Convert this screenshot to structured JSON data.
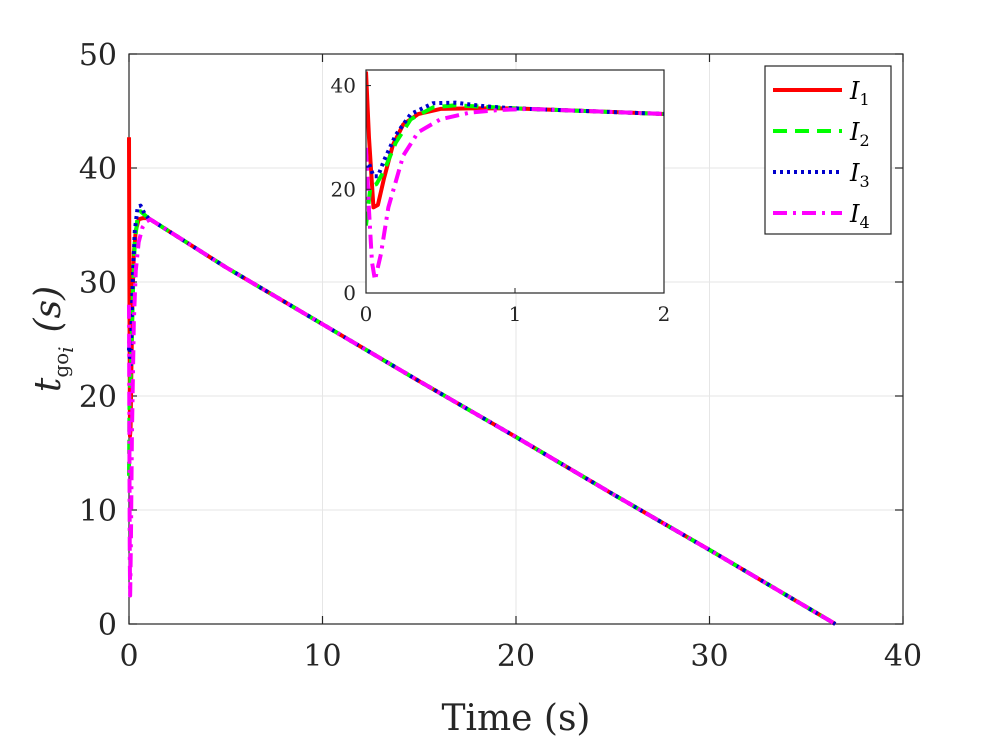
{
  "chart_data": [
    {
      "type": "line",
      "xlabel": "Time (s)",
      "ylabel": {
        "main": "t",
        "sub": "go",
        "subsub": "i",
        "unit": "(s)"
      },
      "xlim": [
        0,
        40
      ],
      "ylim": [
        0,
        50
      ],
      "xticks": [
        0,
        10,
        20,
        30,
        40
      ],
      "yticks": [
        0,
        10,
        20,
        30,
        40,
        50
      ],
      "grid": true,
      "legend": {
        "placement": "top-right",
        "entries": [
          {
            "base": "I",
            "sub": "1"
          },
          {
            "base": "I",
            "sub": "2"
          },
          {
            "base": "I",
            "sub": "3"
          },
          {
            "base": "I",
            "sub": "4"
          }
        ]
      },
      "series": [
        {
          "legend_index": 0,
          "color": "#ff0000",
          "style": "solid",
          "x": [
            0,
            0.02,
            0.05,
            0.08,
            0.12,
            0.18,
            0.25,
            0.35,
            0.5,
            0.7,
            1.0,
            5,
            10,
            15,
            20,
            25,
            30,
            35,
            36.5
          ],
          "y": [
            42.7,
            30.0,
            16.5,
            17.0,
            22.0,
            28.5,
            32.5,
            34.5,
            35.5,
            35.6,
            35.6,
            31.3,
            26.3,
            21.3,
            16.4,
            11.4,
            6.5,
            1.5,
            0
          ]
        },
        {
          "legend_index": 1,
          "color": "#00ff00",
          "style": "dashed",
          "x": [
            0,
            0.03,
            0.07,
            0.12,
            0.2,
            0.3,
            0.45,
            0.6,
            0.8,
            1.0,
            5,
            10,
            15,
            20,
            25,
            30,
            35,
            36.5
          ],
          "y": [
            13.0,
            20.5,
            21.0,
            23.5,
            29.0,
            33.5,
            35.8,
            36.2,
            35.9,
            35.6,
            31.3,
            26.3,
            21.3,
            16.4,
            11.4,
            6.5,
            1.5,
            0
          ]
        },
        {
          "legend_index": 2,
          "color": "#0000cc",
          "style": "dotted",
          "x": [
            0,
            0.02,
            0.05,
            0.08,
            0.12,
            0.2,
            0.3,
            0.45,
            0.6,
            0.8,
            1.0,
            5,
            10,
            15,
            20,
            25,
            30,
            35,
            36.5
          ],
          "y": [
            24.0,
            25.0,
            22.5,
            22.5,
            25.5,
            30.5,
            34.5,
            36.6,
            36.7,
            36.0,
            35.6,
            31.3,
            26.3,
            21.3,
            16.4,
            11.4,
            6.5,
            1.5,
            0
          ]
        },
        {
          "legend_index": 3,
          "color": "#ff00ff",
          "style": "dashdot",
          "x": [
            0,
            0.02,
            0.04,
            0.06,
            0.1,
            0.15,
            0.25,
            0.35,
            0.5,
            0.7,
            0.9,
            1.1,
            5,
            10,
            15,
            20,
            25,
            30,
            35,
            36.5
          ],
          "y": [
            28.0,
            16.0,
            6.0,
            2.5,
            7.5,
            16.5,
            26.5,
            31.0,
            33.5,
            34.8,
            35.3,
            35.5,
            31.3,
            26.3,
            21.3,
            16.4,
            11.4,
            6.5,
            1.5,
            0
          ]
        }
      ]
    },
    {
      "type": "line",
      "role": "inset",
      "xlim": [
        0,
        2
      ],
      "ylim": [
        0,
        43
      ],
      "xticks": [
        0,
        1,
        2
      ],
      "yticks": [
        0,
        20,
        40
      ],
      "grid": false
    }
  ]
}
